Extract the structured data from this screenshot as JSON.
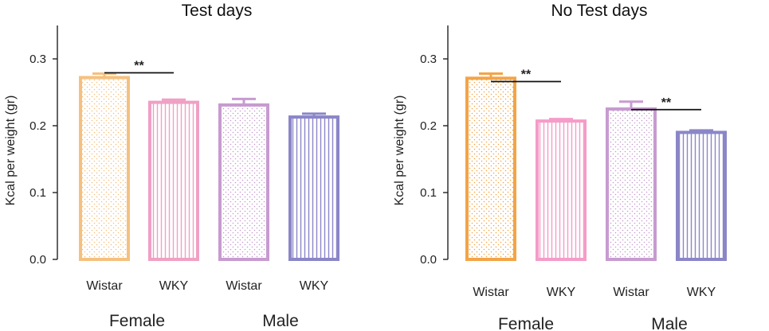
{
  "chart_data": [
    {
      "type": "bar",
      "title": "Test days",
      "ylabel": "Kcal per weight (gr)",
      "xlabel": "",
      "ylim": [
        0,
        0.35
      ],
      "yticks": [
        "0.0",
        "0.1",
        "0.2",
        "0.3"
      ],
      "categories": [
        "Wistar",
        "WKY",
        "Wistar",
        "WKY"
      ],
      "groups": [
        {
          "name": "Female",
          "span": [
            0,
            1
          ]
        },
        {
          "name": "Male",
          "span": [
            2,
            3
          ]
        }
      ],
      "values": [
        0.272,
        0.235,
        0.231,
        0.213
      ],
      "errors": [
        0.006,
        0.004,
        0.009,
        0.005
      ],
      "colors": [
        "#f5c07f",
        "#f0a0c4",
        "#c79bd0",
        "#8b86c8"
      ],
      "patterns": [
        "dots",
        "vlines",
        "dots",
        "vlines"
      ],
      "significance": [
        {
          "from": 0,
          "to": 1,
          "label": "**"
        }
      ]
    },
    {
      "type": "bar",
      "title": "No Test days",
      "ylabel": "Kcal per weight (gr)",
      "xlabel": "",
      "ylim": [
        0,
        0.35
      ],
      "yticks": [
        "0.0",
        "0.1",
        "0.2",
        "0.3"
      ],
      "categories": [
        "Wistar",
        "WKY",
        "Wistar",
        "WKY"
      ],
      "groups": [
        {
          "name": "Female",
          "span": [
            0,
            1
          ]
        },
        {
          "name": "Male",
          "span": [
            2,
            3
          ]
        }
      ],
      "values": [
        0.271,
        0.207,
        0.225,
        0.19
      ],
      "errors": [
        0.007,
        0.003,
        0.011,
        0.003
      ],
      "colors": [
        "#f3a447",
        "#f59cc8",
        "#c79bd0",
        "#8b86c8"
      ],
      "patterns": [
        "dots",
        "vlines",
        "dots",
        "vlines"
      ],
      "significance": [
        {
          "from": 0,
          "to": 1,
          "label": "**"
        },
        {
          "from": 2,
          "to": 3,
          "label": "**"
        }
      ]
    }
  ]
}
